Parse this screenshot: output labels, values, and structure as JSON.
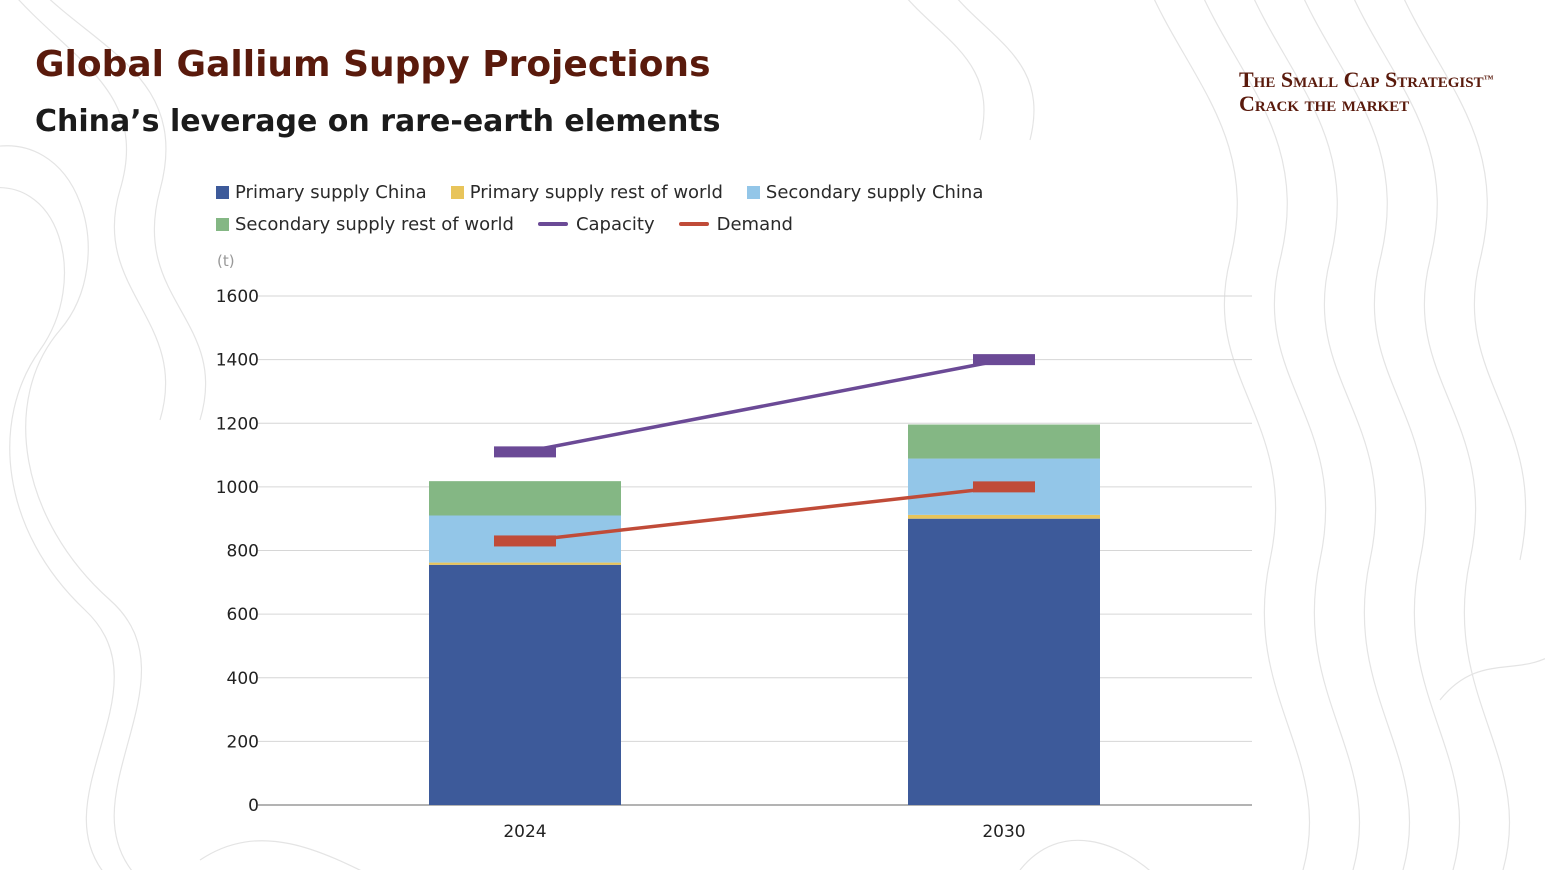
{
  "header": {
    "title": "Global Gallium Suppy Projections",
    "subtitle": "China’s leverage on rare-earth elements"
  },
  "brand": {
    "line1": "The Small Cap Strategist",
    "trademark": "™",
    "line2": "Crack the market"
  },
  "colors": {
    "title": "#5a1a0c",
    "primary_china": "#3d5a9a",
    "primary_row": "#e8c45a",
    "secondary_china": "#93c6e8",
    "secondary_row": "#84b784",
    "capacity": "#6b4a96",
    "demand": "#c04b38"
  },
  "chart_data": {
    "type": "bar",
    "stacked": true,
    "title": "Global Gallium Suppy Projections",
    "ylabel": "(t)",
    "xlabel": "",
    "ylim": [
      0,
      1600
    ],
    "yticks": [
      0,
      200,
      400,
      600,
      800,
      1000,
      1200,
      1400,
      1600
    ],
    "grid": true,
    "legend_position": "top",
    "categories": [
      "2024",
      "2030"
    ],
    "series": [
      {
        "name": "Primary supply China",
        "kind": "bar",
        "color": "#3d5a9a",
        "values": [
          755,
          900
        ]
      },
      {
        "name": "Primary supply rest of world",
        "kind": "bar",
        "color": "#e8c45a",
        "values": [
          7,
          12
        ]
      },
      {
        "name": "Secondary supply China",
        "kind": "bar",
        "color": "#93c6e8",
        "values": [
          148,
          177
        ]
      },
      {
        "name": "Secondary supply rest of world",
        "kind": "bar",
        "color": "#84b784",
        "values": [
          108,
          107
        ]
      },
      {
        "name": "Capacity",
        "kind": "line",
        "color": "#6b4a96",
        "values": [
          1110,
          1400
        ]
      },
      {
        "name": "Demand",
        "kind": "line",
        "color": "#c04b38",
        "values": [
          830,
          1000
        ]
      }
    ]
  }
}
